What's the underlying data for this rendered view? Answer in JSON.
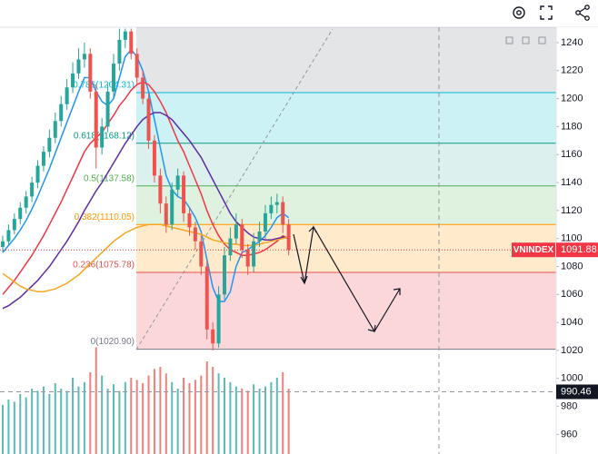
{
  "chart_data": {
    "type": "candlestick",
    "symbol_label": {
      "name": "VNINDEX",
      "value": 1091.88,
      "color": "#f23645"
    },
    "crosshair": {
      "value": 990.46
    },
    "xlim": [
      0,
      95
    ],
    "ylim": [
      946,
      1251
    ],
    "yticks": [
      1240,
      1220,
      1200,
      1180,
      1160,
      1140,
      1120,
      1100,
      1080,
      1060,
      1040,
      1020,
      1000,
      980,
      960
    ],
    "grid": false,
    "up_color": "#26a69a",
    "down_color": "#ef5350",
    "candles": {
      "open": [
        1094,
        1098,
        1106,
        1114,
        1122,
        1130,
        1140,
        1152,
        1162,
        1172,
        1184,
        1196,
        1208,
        1218,
        1228,
        1232,
        1205,
        1165,
        1180,
        1205,
        1225,
        1242,
        1248,
        1232,
        1215,
        1200,
        1170,
        1145,
        1125,
        1110,
        1135,
        1145,
        1118,
        1108,
        1098,
        1080,
        1035,
        1025,
        1060,
        1088,
        1100,
        1110,
        1092,
        1080,
        1098,
        1105,
        1118,
        1124,
        1126,
        1110
      ],
      "high": [
        1102,
        1110,
        1118,
        1126,
        1134,
        1144,
        1156,
        1166,
        1178,
        1190,
        1202,
        1214,
        1226,
        1236,
        1240,
        1236,
        1210,
        1186,
        1210,
        1232,
        1250,
        1250,
        1250,
        1236,
        1220,
        1204,
        1174,
        1150,
        1130,
        1140,
        1150,
        1148,
        1122,
        1112,
        1102,
        1084,
        1040,
        1066,
        1094,
        1108,
        1118,
        1114,
        1096,
        1104,
        1112,
        1124,
        1130,
        1132,
        1130,
        1114
      ],
      "low": [
        1090,
        1095,
        1103,
        1110,
        1118,
        1126,
        1136,
        1148,
        1158,
        1168,
        1180,
        1192,
        1204,
        1214,
        1222,
        1200,
        1150,
        1160,
        1176,
        1200,
        1220,
        1236,
        1228,
        1210,
        1196,
        1164,
        1140,
        1118,
        1104,
        1106,
        1130,
        1112,
        1102,
        1092,
        1074,
        1028,
        1020,
        1022,
        1056,
        1084,
        1096,
        1086,
        1074,
        1076,
        1094,
        1100,
        1114,
        1118,
        1104,
        1088
      ],
      "close": [
        1098,
        1106,
        1114,
        1122,
        1130,
        1140,
        1152,
        1162,
        1172,
        1184,
        1196,
        1208,
        1218,
        1228,
        1232,
        1205,
        1165,
        1180,
        1205,
        1225,
        1242,
        1248,
        1232,
        1215,
        1200,
        1170,
        1145,
        1125,
        1110,
        1135,
        1145,
        1118,
        1108,
        1098,
        1080,
        1035,
        1025,
        1060,
        1088,
        1100,
        1110,
        1092,
        1080,
        1098,
        1105,
        1118,
        1124,
        1126,
        1110,
        1091.88
      ]
    },
    "volume_ylim": [
      0,
      100
    ],
    "volume": [
      45,
      50,
      48,
      55,
      52,
      60,
      58,
      62,
      55,
      65,
      60,
      58,
      70,
      62,
      66,
      75,
      98,
      72,
      60,
      64,
      58,
      66,
      70,
      68,
      65,
      72,
      78,
      80,
      74,
      66,
      60,
      70,
      65,
      68,
      72,
      85,
      80,
      74,
      70,
      66,
      62,
      60,
      58,
      64,
      60,
      62,
      66,
      70,
      75,
      60
    ],
    "series": [
      {
        "color": "#2196f3",
        "values": [
          1090,
          1095,
          1100,
          1106,
          1113,
          1121,
          1130,
          1140,
          1150,
          1161,
          1172,
          1183,
          1194,
          1205,
          1215,
          1215,
          1205,
          1198,
          1195,
          1200,
          1215,
          1230,
          1235,
          1230,
          1220,
          1205,
          1185,
          1165,
          1145,
          1135,
          1130,
          1128,
          1122,
          1115,
          1105,
          1085,
          1065,
          1055,
          1055,
          1062,
          1080,
          1090,
          1092,
          1095,
          1098,
          1102,
          1108,
          1115,
          1118,
          1115
        ]
      },
      {
        "color": "#f23645",
        "values": [
          1060,
          1065,
          1070,
          1076,
          1082,
          1088,
          1095,
          1102,
          1110,
          1118,
          1126,
          1135,
          1144,
          1153,
          1162,
          1168,
          1172,
          1176,
          1182,
          1188,
          1195,
          1200,
          1206,
          1210,
          1212,
          1210,
          1205,
          1198,
          1190,
          1180,
          1170,
          1162,
          1152,
          1142,
          1132,
          1120,
          1110,
          1102,
          1096,
          1092,
          1090,
          1088,
          1088,
          1089,
          1090,
          1092,
          1095,
          1098,
          1102,
          1100
        ]
      },
      {
        "color": "#5e2ca5",
        "values": [
          1050,
          1052,
          1055,
          1058,
          1062,
          1066,
          1070,
          1075,
          1080,
          1086,
          1092,
          1098,
          1105,
          1112,
          1120,
          1127,
          1134,
          1140,
          1147,
          1154,
          1161,
          1168,
          1174,
          1180,
          1185,
          1188,
          1190,
          1190,
          1188,
          1185,
          1180,
          1175,
          1170,
          1164,
          1158,
          1150,
          1142,
          1134,
          1126,
          1118,
          1112,
          1108,
          1104,
          1101,
          1100,
          1099,
          1099,
          1100,
          1101,
          1100
        ]
      },
      {
        "color": "#f5a623",
        "values": [
          1075,
          1072,
          1069,
          1066,
          1064,
          1063,
          1062,
          1062,
          1063,
          1064,
          1066,
          1068,
          1071,
          1074,
          1078,
          1082,
          1086,
          1090,
          1094,
          1098,
          1101,
          1104,
          1106,
          1108,
          1109,
          1110,
          1110,
          1110,
          1109,
          1108,
          1107,
          1106,
          1105,
          1104,
          1103,
          1101,
          1099,
          1098,
          1097,
          1096,
          1096,
          1095,
          1095,
          1095,
          1096,
          1097,
          1098,
          1099,
          1100,
          1101
        ]
      }
    ],
    "fib_levels": [
      {
        "value": 1020.9,
        "label": "0(1020.90)",
        "color": "#787b86",
        "fill": "rgba(242,54,69,0.2)"
      },
      {
        "value": 1075.78,
        "label": "0.236(1075.78)",
        "color": "#e0524e",
        "fill": "rgba(255,152,0,0.2)"
      },
      {
        "value": 1110.05,
        "label": "0.382(1110.05)",
        "color": "#ff9800",
        "fill": "rgba(76,175,80,0.18)"
      },
      {
        "value": 1137.58,
        "label": "0.5(1137.58)",
        "color": "#4caf50",
        "fill": "rgba(8,153,129,0.14)"
      },
      {
        "value": 1168.12,
        "label": "0.618(1168.12)",
        "color": "#089981",
        "fill": "rgba(0,188,212,0.2)"
      },
      {
        "value": 1204.31,
        "label": "0.786(1204.31)",
        "color": "#00bcd4",
        "fill": "rgba(120,123,134,0.2)"
      }
    ]
  }
}
